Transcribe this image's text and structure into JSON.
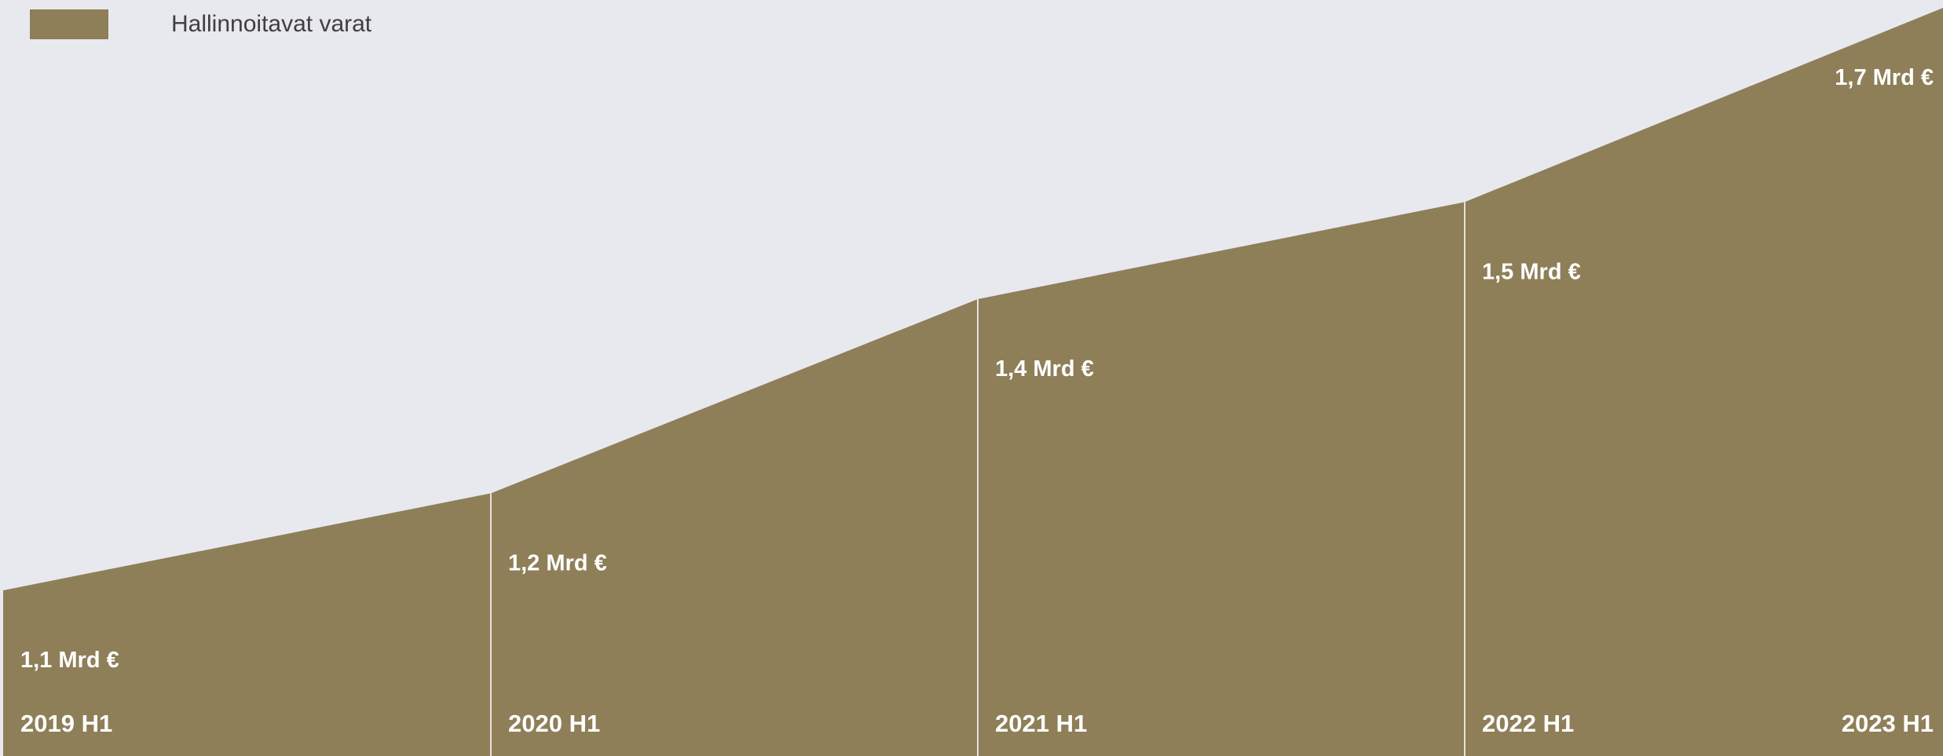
{
  "legend": {
    "label": "Hallinnoitavat varat"
  },
  "colors": {
    "area": "#8e7f59",
    "background": "#e8e9ee",
    "divider": "#e6e2d8",
    "label": "#ffffff"
  },
  "chart_data": {
    "type": "area",
    "categories": [
      "2019 H1",
      "2020 H1",
      "2021 H1",
      "2022 H1",
      "2023 H1"
    ],
    "series": [
      {
        "name": "Hallinnoitavat varat",
        "values": [
          1.1,
          1.2,
          1.4,
          1.5,
          1.7
        ]
      }
    ],
    "data_labels": [
      "1,1 Mrd €",
      "1,2 Mrd €",
      "1,4 Mrd €",
      "1,5 Mrd €",
      "1,7 Mrd €"
    ],
    "legend_position": "top-left",
    "grid": false
  }
}
